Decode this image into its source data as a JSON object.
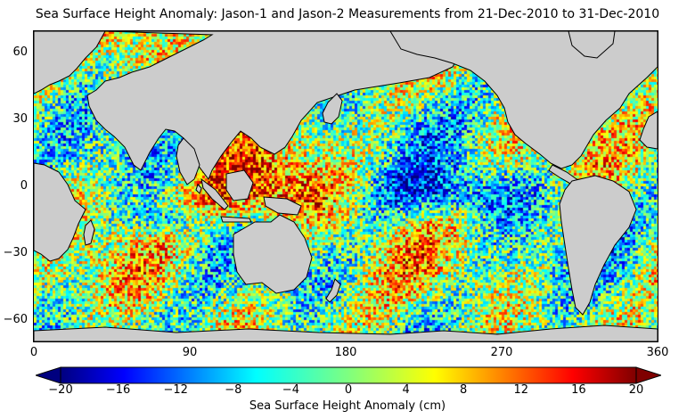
{
  "title": "Sea Surface Height Anomaly: Jason-1 and Jason-2 Measurements from 21-Dec-2010 to 31-Dec-2010",
  "map": {
    "projection": "equirectangular",
    "lon_range": [
      0,
      360
    ],
    "lat_range": [
      -70,
      70
    ],
    "land_color": "#cccccc",
    "coastline_color": "#000000",
    "x_ticks": [
      "0",
      "90",
      "180",
      "270",
      "360"
    ],
    "y_ticks": [
      "60",
      "30",
      "0",
      "−30",
      "−60"
    ]
  },
  "colorbar": {
    "label": "Sea Surface Height Anomaly (cm)",
    "ticks": [
      "−20",
      "−16",
      "−12",
      "−8",
      "−4",
      "0",
      "4",
      "8",
      "12",
      "16",
      "20"
    ],
    "range": [
      -20,
      20
    ],
    "colormap": "jet",
    "extend": "both"
  }
}
